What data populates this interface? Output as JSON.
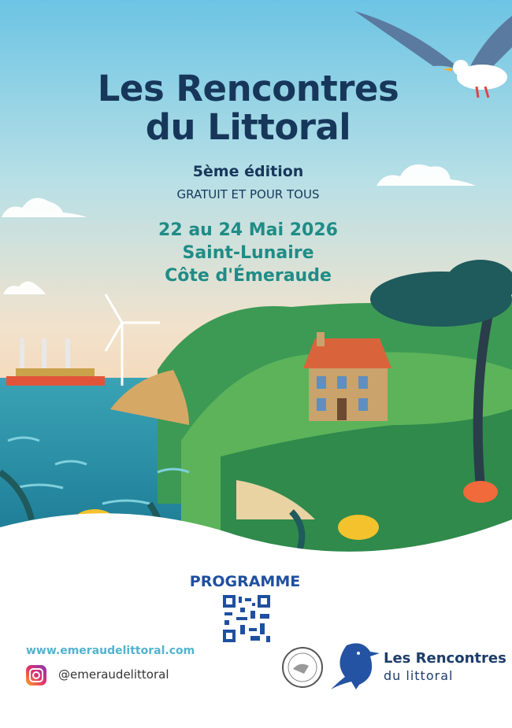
{
  "poster": {
    "title_line1": "Les Rencontres",
    "title_line2": "du Littoral",
    "edition": "5ème édition",
    "tagline": "GRATUIT ET POUR TOUS",
    "dates": "22 au 24 Mai 2026",
    "location_town": "Saint-Lunaire",
    "location_region": "Côte d'Émeraude"
  },
  "footer": {
    "programme_label": "PROGRAMME",
    "website": "www.emeraudelittoral.com",
    "instagram_handle": "@emeraudelittoral",
    "logo_line1": "Les Rencontres",
    "logo_line2": "du littoral"
  },
  "colors": {
    "title": "#17375a",
    "accent_teal": "#1f8c86",
    "programme_blue": "#1f4fa0",
    "website": "#52b3cf"
  }
}
